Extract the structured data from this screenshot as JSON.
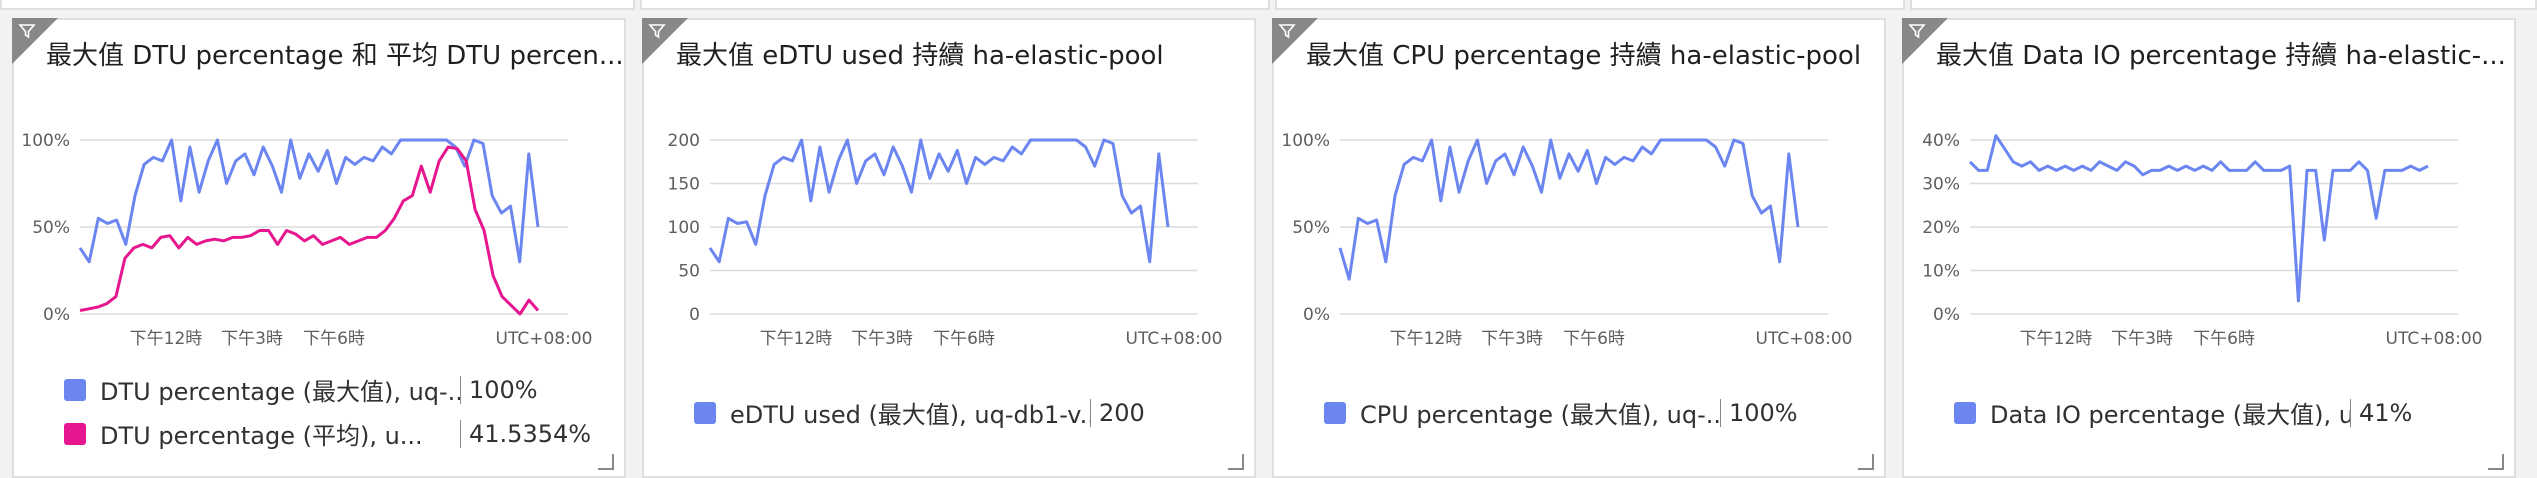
{
  "colors": {
    "blue": "#6b86f0",
    "magenta": "#e6168f",
    "grid": "#dcdcdc",
    "filter": "#8a8886"
  },
  "tiles": [
    {
      "title": "最大值 DTU percentage 和 平均 DTU percen...",
      "yticks": [
        "100%",
        "50%",
        "0%"
      ],
      "xticks": [
        "下午12時",
        "下午3時",
        "下午6時"
      ],
      "timezone": "UTC+08:00",
      "legend": [
        {
          "label": "DTU percentage (最大值), uq-...",
          "value": "100%",
          "color": "#6b86f0"
        },
        {
          "label": "DTU percentage (平均), u...",
          "value": "41.5354%",
          "color": "#e6168f"
        }
      ]
    },
    {
      "title": "最大值 eDTU used 持續 ha-elastic-pool",
      "yticks": [
        "200",
        "150",
        "100",
        "50",
        "0"
      ],
      "xticks": [
        "下午12時",
        "下午3時",
        "下午6時"
      ],
      "timezone": "UTC+08:00",
      "legend": [
        {
          "label": "eDTU used (最大值), uq-db1-v...",
          "value": "200",
          "color": "#6b86f0"
        }
      ]
    },
    {
      "title": "最大值 CPU percentage 持續 ha-elastic-pool",
      "yticks": [
        "100%",
        "50%",
        "0%"
      ],
      "xticks": [
        "下午12時",
        "下午3時",
        "下午6時"
      ],
      "timezone": "UTC+08:00",
      "legend": [
        {
          "label": "CPU percentage (最大值), uq-...",
          "value": "100%",
          "color": "#6b86f0"
        }
      ]
    },
    {
      "title": "最大值 Data IO percentage 持續 ha-elastic-...",
      "yticks": [
        "40%",
        "30%",
        "20%",
        "10%",
        "0%"
      ],
      "xticks": [
        "下午12時",
        "下午3時",
        "下午6時"
      ],
      "timezone": "UTC+08:00",
      "legend": [
        {
          "label": "Data IO percentage (最大值), u...",
          "value": "41%",
          "color": "#6b86f0"
        }
      ]
    }
  ],
  "chart_data": [
    {
      "type": "line",
      "title": "最大值 DTU percentage 和 平均 DTU percen...",
      "ylim": [
        0,
        100
      ],
      "series": [
        {
          "name": "DTU percentage (最大值), uq-...",
          "values": [
            38,
            30,
            55,
            52,
            54,
            40,
            68,
            86,
            90,
            88,
            100,
            65,
            96,
            70,
            88,
            100,
            75,
            88,
            92,
            80,
            96,
            85,
            70,
            100,
            78,
            92,
            82,
            94,
            75,
            90,
            86,
            90,
            88,
            96,
            92,
            100,
            100,
            100,
            100,
            100,
            100,
            96,
            85,
            100,
            98,
            68,
            58,
            62,
            30,
            92,
            50
          ]
        },
        {
          "name": "DTU percentage (平均), u...",
          "values": [
            2,
            3,
            4,
            6,
            10,
            32,
            38,
            40,
            38,
            44,
            45,
            38,
            44,
            40,
            42,
            43,
            42,
            44,
            44,
            45,
            48,
            48,
            40,
            48,
            46,
            42,
            45,
            40,
            42,
            44,
            40,
            42,
            44,
            44,
            48,
            55,
            65,
            68,
            85,
            70,
            88,
            96,
            95,
            88,
            60,
            48,
            22,
            10,
            5,
            0,
            8,
            2
          ]
        }
      ]
    },
    {
      "type": "line",
      "title": "最大值 eDTU used 持續 ha-elastic-pool",
      "ylim": [
        0,
        200
      ],
      "series": [
        {
          "name": "eDTU used (最大值), uq-db1-v...",
          "values": [
            76,
            60,
            110,
            104,
            106,
            80,
            136,
            172,
            180,
            176,
            200,
            130,
            192,
            140,
            176,
            200,
            150,
            176,
            184,
            160,
            192,
            170,
            140,
            200,
            156,
            184,
            164,
            188,
            150,
            180,
            172,
            180,
            176,
            192,
            184,
            200,
            200,
            200,
            200,
            200,
            200,
            192,
            170,
            200,
            196,
            136,
            116,
            124,
            60,
            184,
            100
          ]
        }
      ]
    },
    {
      "type": "line",
      "title": "最大值 CPU percentage 持續 ha-elastic-pool",
      "ylim": [
        0,
        100
      ],
      "series": [
        {
          "name": "CPU percentage (最大值), uq-...",
          "values": [
            38,
            20,
            55,
            52,
            54,
            30,
            68,
            86,
            90,
            88,
            100,
            65,
            96,
            70,
            88,
            100,
            75,
            88,
            92,
            80,
            96,
            85,
            70,
            100,
            78,
            92,
            82,
            94,
            75,
            90,
            86,
            90,
            88,
            96,
            92,
            100,
            100,
            100,
            100,
            100,
            100,
            96,
            85,
            100,
            98,
            68,
            58,
            62,
            30,
            92,
            50
          ]
        }
      ]
    },
    {
      "type": "line",
      "title": "最大值 Data IO percentage 持續 ha-elastic-...",
      "ylim": [
        0,
        40
      ],
      "series": [
        {
          "name": "Data IO percentage (最大值), u...",
          "values": [
            35,
            33,
            33,
            41,
            38,
            35,
            34,
            35,
            33,
            34,
            33,
            34,
            33,
            34,
            33,
            35,
            34,
            33,
            35,
            34,
            32,
            33,
            33,
            34,
            33,
            34,
            33,
            34,
            33,
            35,
            33,
            33,
            33,
            35,
            33,
            33,
            33,
            34,
            3,
            33,
            33,
            17,
            33,
            33,
            33,
            35,
            33,
            22,
            33,
            33,
            33,
            34,
            33,
            34
          ]
        }
      ]
    }
  ]
}
